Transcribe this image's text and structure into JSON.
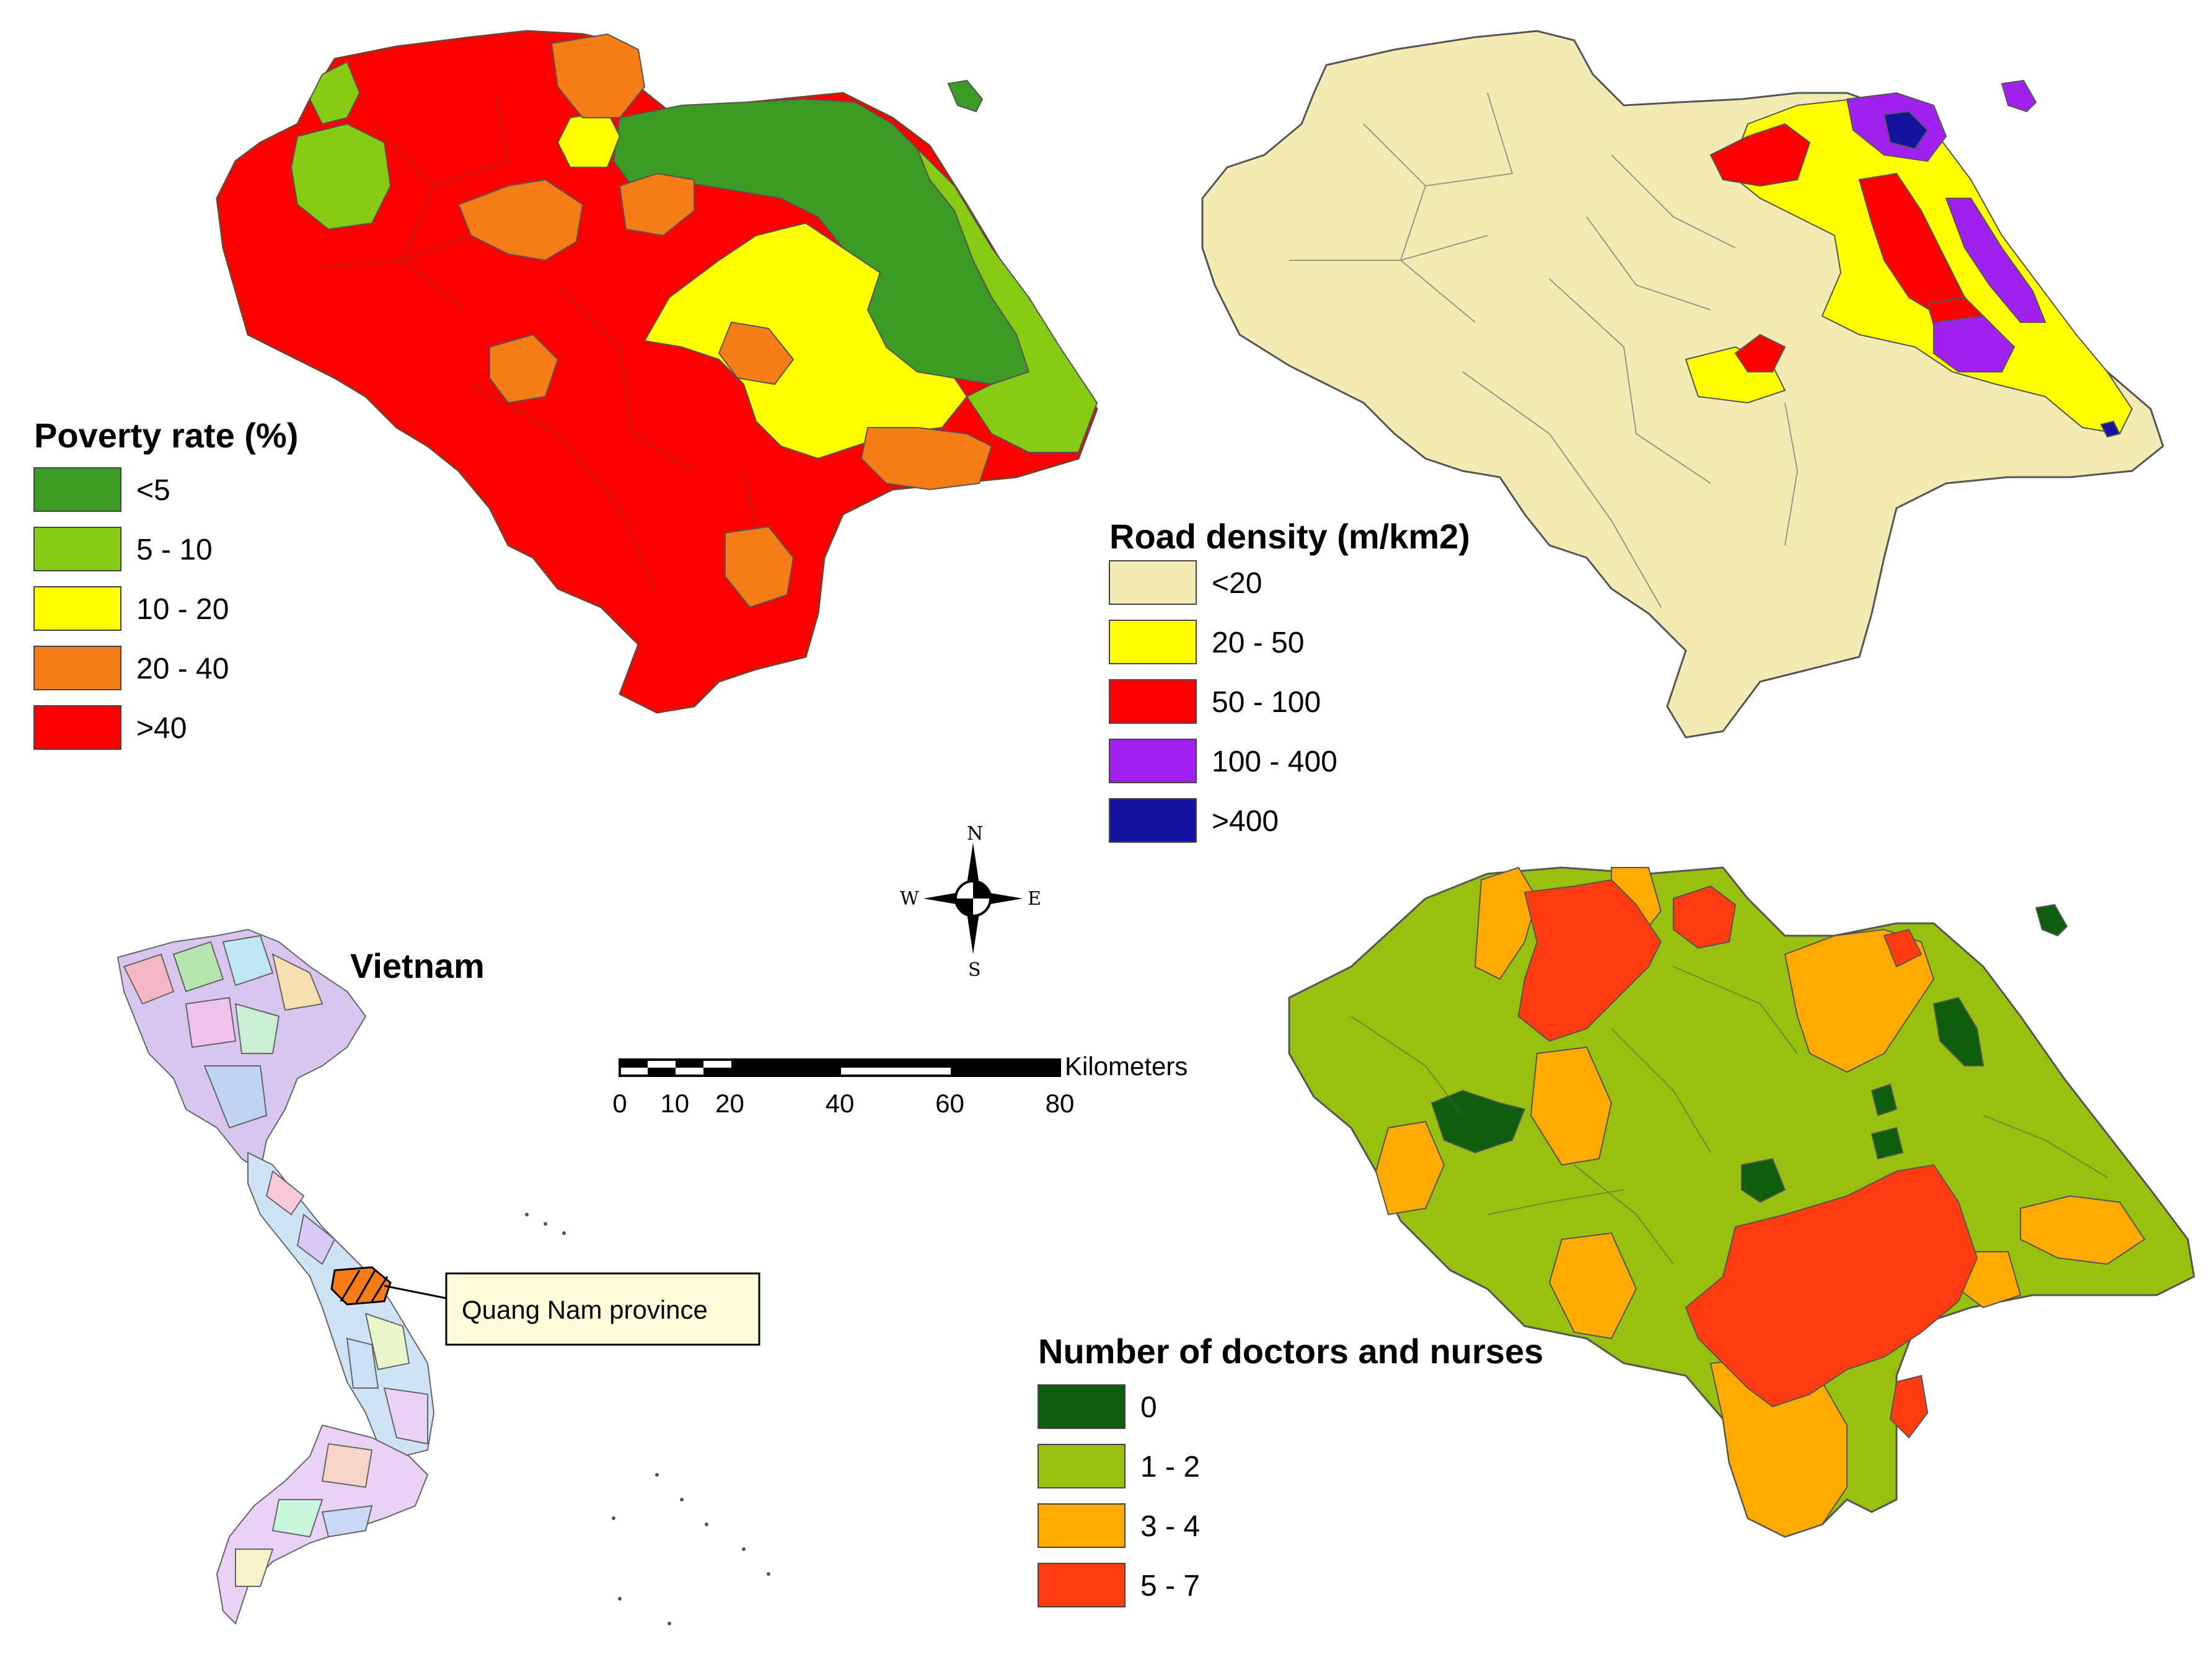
{
  "maps": {
    "poverty": {
      "title": "Poverty rate (%)",
      "classes": [
        {
          "label": "<5",
          "color": "#3c9b24"
        },
        {
          "label": "5 - 10",
          "color": "#86cc12"
        },
        {
          "label": "10 - 20",
          "color": "#ffff00"
        },
        {
          "label": "20 - 40",
          "color": "#f57c16"
        },
        {
          "label": ">40",
          "color": "#ff0000"
        }
      ]
    },
    "road": {
      "title": "Road density (m/km2)",
      "classes": [
        {
          "label": "<20",
          "color": "#f2ebb3"
        },
        {
          "label": "20 - 50",
          "color": "#ffff00"
        },
        {
          "label": "50 - 100",
          "color": "#ff0000"
        },
        {
          "label": "100 - 400",
          "color": "#a020f0"
        },
        {
          "label": ">400",
          "color": "#1414a0"
        }
      ]
    },
    "doctors": {
      "title": "Number of doctors and nurses",
      "classes": [
        {
          "label": "0",
          "color": "#0d5e0d"
        },
        {
          "label": "1 - 2",
          "color": "#97c10e"
        },
        {
          "label": "3 - 4",
          "color": "#ffaa00"
        },
        {
          "label": "5 - 7",
          "color": "#ff3c0f"
        }
      ]
    }
  },
  "inset": {
    "title": "Vietnam",
    "callout": "Quang Nam province"
  },
  "compass": {
    "n": "N",
    "s": "S",
    "e": "E",
    "w": "W"
  },
  "scale_bar": {
    "unit": "Kilometers",
    "ticks": [
      "0",
      "10",
      "20",
      "40",
      "60",
      "80"
    ]
  }
}
